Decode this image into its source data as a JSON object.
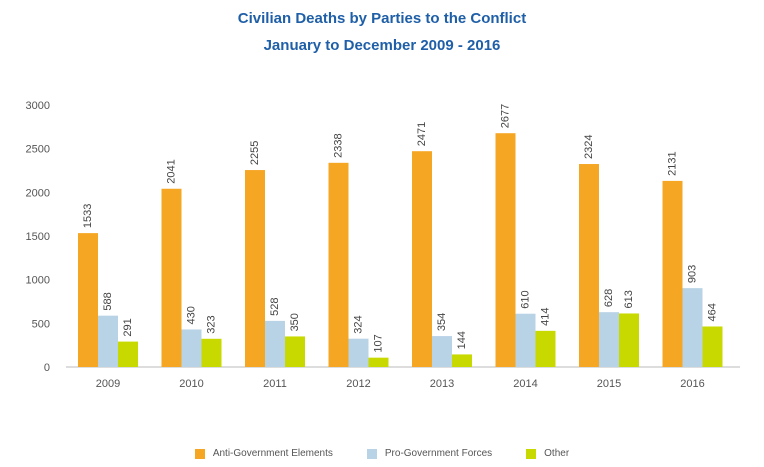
{
  "chart_data": {
    "type": "bar",
    "title": "Civilian Deaths by Parties to the Conflict",
    "subtitle": "January to December 2009 - 2016",
    "categories": [
      "2009",
      "2010",
      "2011",
      "2012",
      "2013",
      "2014",
      "2015",
      "2016"
    ],
    "series": [
      {
        "name": "Anti-Government Elements",
        "color": "#f5a623",
        "values": [
          1533,
          2041,
          2255,
          2338,
          2471,
          2677,
          2324,
          2131
        ]
      },
      {
        "name": "Pro-Government Forces",
        "color": "#b9d3e6",
        "values": [
          588,
          430,
          528,
          324,
          354,
          610,
          628,
          903
        ]
      },
      {
        "name": "Other",
        "color": "#c8d900",
        "values": [
          291,
          323,
          350,
          107,
          144,
          414,
          613,
          464
        ]
      }
    ],
    "ylim": [
      0,
      3000
    ],
    "yticks": [
      0,
      500,
      1000,
      1500,
      2000,
      2500,
      3000
    ],
    "xlabel": "",
    "ylabel": "",
    "grid": false,
    "legend": "bottom"
  }
}
